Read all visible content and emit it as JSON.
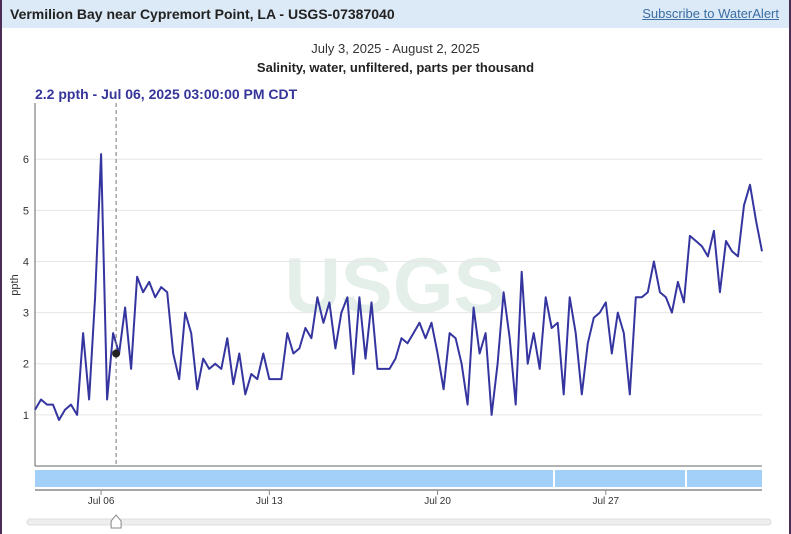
{
  "header": {
    "title": "Vermilion Bay near Cypremort Point, LA - USGS-07387040",
    "subscribe_link": "Subscribe to WaterAlert"
  },
  "chart_header": {
    "date_range": "July 3, 2025 - August 2, 2025",
    "parameter": "Salinity, water, unfiltered, parts per thousand",
    "tooltip": "2.2 ppth - Jul 06, 2025 03:00:00 PM CDT"
  },
  "colors": {
    "series": "#3535a0",
    "tooltip_text": "#35359a",
    "brush_band": "#a3d0f8",
    "header_bg": "#dce9f6"
  },
  "chart_data": {
    "type": "line",
    "title": "Salinity, water, unfiltered, parts per thousand",
    "xlabel": "",
    "ylabel": "ppth",
    "xlim": [
      "2025-07-03T06:00",
      "2025-08-02T12:00"
    ],
    "ylim": [
      0,
      7.1
    ],
    "yticks": [
      1,
      2,
      3,
      4,
      5,
      6
    ],
    "xticks": [
      {
        "label": "Jul 06",
        "date": "2025-07-06T00:00"
      },
      {
        "label": "Jul 13",
        "date": "2025-07-13T00:00"
      },
      {
        "label": "Jul 20",
        "date": "2025-07-20T00:00"
      },
      {
        "label": "Jul 27",
        "date": "2025-07-27T00:00"
      }
    ],
    "grid": true,
    "watermark": "USGS",
    "cursor": {
      "date": "2025-07-06T15:00",
      "value": 2.2
    },
    "points": [
      [
        "2025-07-03T06:00",
        1.1
      ],
      [
        "2025-07-03T12:00",
        1.3
      ],
      [
        "2025-07-03T18:00",
        1.2
      ],
      [
        "2025-07-04T00:00",
        1.2
      ],
      [
        "2025-07-04T06:00",
        0.9
      ],
      [
        "2025-07-04T12:00",
        1.1
      ],
      [
        "2025-07-04T18:00",
        1.2
      ],
      [
        "2025-07-05T00:00",
        1.0
      ],
      [
        "2025-07-05T06:00",
        2.6
      ],
      [
        "2025-07-05T12:00",
        1.3
      ],
      [
        "2025-07-05T18:00",
        3.3
      ],
      [
        "2025-07-06T00:00",
        6.1
      ],
      [
        "2025-07-06T06:00",
        1.3
      ],
      [
        "2025-07-06T12:00",
        2.6
      ],
      [
        "2025-07-06T18:00",
        2.2
      ],
      [
        "2025-07-07T00:00",
        3.1
      ],
      [
        "2025-07-07T06:00",
        1.9
      ],
      [
        "2025-07-07T12:00",
        3.7
      ],
      [
        "2025-07-07T18:00",
        3.4
      ],
      [
        "2025-07-08T00:00",
        3.6
      ],
      [
        "2025-07-08T06:00",
        3.3
      ],
      [
        "2025-07-08T12:00",
        3.5
      ],
      [
        "2025-07-08T18:00",
        3.4
      ],
      [
        "2025-07-09T00:00",
        2.2
      ],
      [
        "2025-07-09T06:00",
        1.7
      ],
      [
        "2025-07-09T12:00",
        3.0
      ],
      [
        "2025-07-09T18:00",
        2.6
      ],
      [
        "2025-07-10T00:00",
        1.5
      ],
      [
        "2025-07-10T06:00",
        2.1
      ],
      [
        "2025-07-10T12:00",
        1.9
      ],
      [
        "2025-07-10T18:00",
        2.0
      ],
      [
        "2025-07-11T00:00",
        1.9
      ],
      [
        "2025-07-11T06:00",
        2.5
      ],
      [
        "2025-07-11T12:00",
        1.6
      ],
      [
        "2025-07-11T18:00",
        2.2
      ],
      [
        "2025-07-12T00:00",
        1.4
      ],
      [
        "2025-07-12T06:00",
        1.8
      ],
      [
        "2025-07-12T12:00",
        1.7
      ],
      [
        "2025-07-12T18:00",
        2.2
      ],
      [
        "2025-07-13T00:00",
        1.7
      ],
      [
        "2025-07-13T06:00",
        1.7
      ],
      [
        "2025-07-13T12:00",
        1.7
      ],
      [
        "2025-07-13T18:00",
        2.6
      ],
      [
        "2025-07-14T00:00",
        2.2
      ],
      [
        "2025-07-14T06:00",
        2.3
      ],
      [
        "2025-07-14T12:00",
        2.7
      ],
      [
        "2025-07-14T18:00",
        2.5
      ],
      [
        "2025-07-15T00:00",
        3.3
      ],
      [
        "2025-07-15T06:00",
        2.8
      ],
      [
        "2025-07-15T12:00",
        3.2
      ],
      [
        "2025-07-15T18:00",
        2.3
      ],
      [
        "2025-07-16T00:00",
        3.0
      ],
      [
        "2025-07-16T06:00",
        3.3
      ],
      [
        "2025-07-16T12:00",
        1.8
      ],
      [
        "2025-07-16T18:00",
        3.3
      ],
      [
        "2025-07-17T00:00",
        2.1
      ],
      [
        "2025-07-17T06:00",
        3.2
      ],
      [
        "2025-07-17T12:00",
        1.9
      ],
      [
        "2025-07-17T18:00",
        1.9
      ],
      [
        "2025-07-18T00:00",
        1.9
      ],
      [
        "2025-07-18T06:00",
        2.1
      ],
      [
        "2025-07-18T12:00",
        2.5
      ],
      [
        "2025-07-18T18:00",
        2.4
      ],
      [
        "2025-07-19T00:00",
        2.6
      ],
      [
        "2025-07-19T06:00",
        2.8
      ],
      [
        "2025-07-19T12:00",
        2.5
      ],
      [
        "2025-07-19T18:00",
        2.8
      ],
      [
        "2025-07-20T00:00",
        2.2
      ],
      [
        "2025-07-20T06:00",
        1.5
      ],
      [
        "2025-07-20T12:00",
        2.6
      ],
      [
        "2025-07-20T18:00",
        2.5
      ],
      [
        "2025-07-21T00:00",
        2.0
      ],
      [
        "2025-07-21T06:00",
        1.2
      ],
      [
        "2025-07-21T12:00",
        3.1
      ],
      [
        "2025-07-21T18:00",
        2.2
      ],
      [
        "2025-07-22T00:00",
        2.6
      ],
      [
        "2025-07-22T06:00",
        1.0
      ],
      [
        "2025-07-22T12:00",
        2.0
      ],
      [
        "2025-07-22T18:00",
        3.4
      ],
      [
        "2025-07-23T00:00",
        2.5
      ],
      [
        "2025-07-23T06:00",
        1.2
      ],
      [
        "2025-07-23T12:00",
        3.8
      ],
      [
        "2025-07-23T18:00",
        2.0
      ],
      [
        "2025-07-24T00:00",
        2.6
      ],
      [
        "2025-07-24T06:00",
        1.9
      ],
      [
        "2025-07-24T12:00",
        3.3
      ],
      [
        "2025-07-24T18:00",
        2.7
      ],
      [
        "2025-07-25T00:00",
        2.8
      ],
      [
        "2025-07-25T06:00",
        1.4
      ],
      [
        "2025-07-25T12:00",
        3.3
      ],
      [
        "2025-07-25T18:00",
        2.6
      ],
      [
        "2025-07-26T00:00",
        1.4
      ],
      [
        "2025-07-26T06:00",
        2.4
      ],
      [
        "2025-07-26T12:00",
        2.9
      ],
      [
        "2025-07-26T18:00",
        3.0
      ],
      [
        "2025-07-27T00:00",
        3.2
      ],
      [
        "2025-07-27T06:00",
        2.2
      ],
      [
        "2025-07-27T12:00",
        3.0
      ],
      [
        "2025-07-27T18:00",
        2.6
      ],
      [
        "2025-07-28T00:00",
        1.4
      ],
      [
        "2025-07-28T06:00",
        3.3
      ],
      [
        "2025-07-28T12:00",
        3.3
      ],
      [
        "2025-07-28T18:00",
        3.4
      ],
      [
        "2025-07-29T00:00",
        4.0
      ],
      [
        "2025-07-29T06:00",
        3.4
      ],
      [
        "2025-07-29T12:00",
        3.3
      ],
      [
        "2025-07-29T18:00",
        3.0
      ],
      [
        "2025-07-30T00:00",
        3.6
      ],
      [
        "2025-07-30T06:00",
        3.2
      ],
      [
        "2025-07-30T12:00",
        4.5
      ],
      [
        "2025-07-30T18:00",
        4.4
      ],
      [
        "2025-07-31T00:00",
        4.3
      ],
      [
        "2025-07-31T06:00",
        4.1
      ],
      [
        "2025-07-31T12:00",
        4.6
      ],
      [
        "2025-07-31T18:00",
        3.4
      ],
      [
        "2025-08-01T00:00",
        4.4
      ],
      [
        "2025-08-01T06:00",
        4.2
      ],
      [
        "2025-08-01T12:00",
        4.1
      ],
      [
        "2025-08-01T18:00",
        5.1
      ],
      [
        "2025-08-02T00:00",
        5.5
      ],
      [
        "2025-08-02T06:00",
        4.8
      ],
      [
        "2025-08-02T12:00",
        4.2
      ]
    ]
  }
}
